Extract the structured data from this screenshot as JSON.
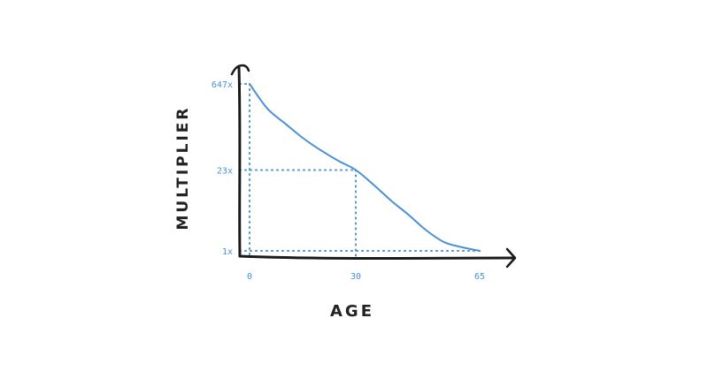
{
  "chart_data": {
    "type": "line",
    "title": "",
    "xlabel": "AGE",
    "ylabel": "MULTIPLIER",
    "x_ticks": [
      "0",
      "30",
      "65"
    ],
    "y_ticks": [
      "1x",
      "23x",
      "647x"
    ],
    "x_tick_values": [
      0,
      30,
      65
    ],
    "y_tick_values": [
      1,
      23,
      647
    ],
    "y_scale": "log",
    "xlim": [
      0,
      65
    ],
    "ylim": [
      1,
      647
    ],
    "series": [
      {
        "x": [
          0,
          5,
          10,
          15,
          20,
          25,
          30,
          35,
          40,
          45,
          50,
          55,
          60,
          65
        ],
        "y": [
          647,
          250,
          140,
          80,
          50,
          33,
          23,
          13,
          7,
          4,
          2.2,
          1.4,
          1.15,
          1
        ]
      }
    ],
    "annotations": [
      "dotted guide lines mark (0, 647x), (30, 23x) and (65, 1x)"
    ],
    "grid": false,
    "style": "hand-drawn sketch"
  },
  "colors": {
    "axis": "#1a1a1a",
    "curve": "#4a90d9",
    "guides": "#4a90d9",
    "tick_text": "#4a90d9"
  }
}
